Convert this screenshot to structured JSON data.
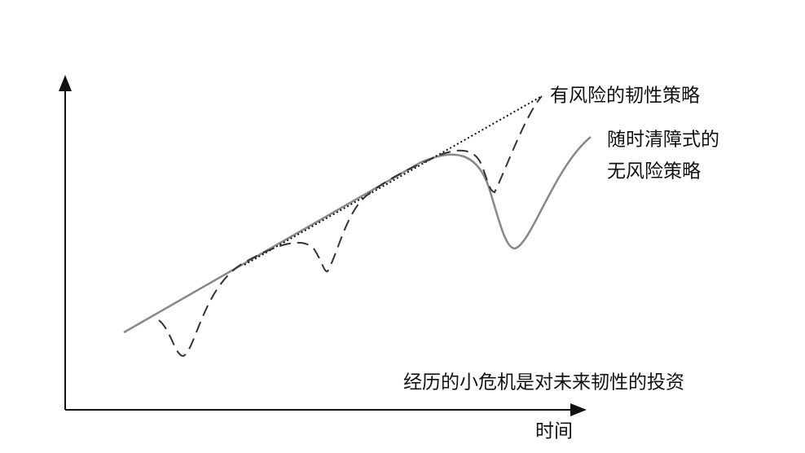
{
  "labels": {
    "risky": "有风险的韧性策略",
    "riskless": [
      "随时清障式的",
      "无风险策略"
    ],
    "caption": "经历的小危机是对未来韧性的投资",
    "x_axis": "时间"
  }
}
